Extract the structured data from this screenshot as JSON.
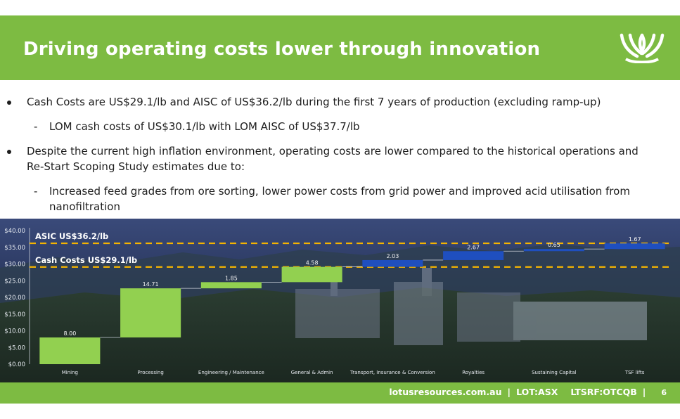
{
  "title": "Driving operating costs lower through innovation",
  "logo_icon": "lotus-logo-icon",
  "bullets": {
    "b1": "Cash Costs are US$29.1/lb and AISC of US$36.2/lb during the first 7 years of production (excluding ramp-up)",
    "b1_sub": "LOM cash costs of US$30.1/lb with LOM AISC of US$37.7/lb",
    "b2_line1": "Despite the current high inflation environment, operating costs are lower compared to the historical operations and",
    "b2_line2": "Re-Start Scoping Study estimates due to:",
    "b2_sub_line1": "Increased feed grades from ore sorting, lower power costs from grid power and improved acid utilisation from",
    "b2_sub_line2": "nanofiltration",
    "dash": "-"
  },
  "chart_data": {
    "type": "bar",
    "subtype": "waterfall",
    "categories": [
      "Mining",
      "Processing",
      "Engineering / Maintenance",
      "General & Admin",
      "Transport, Insurance & Conversion",
      "Royalties",
      "Sustaining Capital",
      "TSF lifts"
    ],
    "values": [
      8.0,
      14.71,
      1.85,
      4.58,
      2.03,
      2.67,
      0.65,
      1.67
    ],
    "value_labels": [
      "8.00",
      "14.71",
      "1.85",
      "4.58",
      "2.03",
      "2.67",
      "0.65",
      "1.67"
    ],
    "series_colors": [
      "#92d050",
      "#92d050",
      "#92d050",
      "#92d050",
      "#1f4fbf",
      "#1f4fbf",
      "#1f4fbf",
      "#1f4fbf"
    ],
    "y_ticks": [
      "$0.00",
      "$5.00",
      "$10.00",
      "$15.00",
      "$20.00",
      "$25.00",
      "$30.00",
      "$35.00",
      "$40.00"
    ],
    "ylim": [
      0,
      40
    ],
    "reference_lines": [
      {
        "label": "ASIC US$36.2/lb",
        "value": 36.2,
        "color": "#f5b400"
      },
      {
        "label": "Cash Costs US$29.1/lb",
        "value": 29.1,
        "color": "#f5b400"
      }
    ],
    "grid": false,
    "legend": "none"
  },
  "footer": {
    "website": "lotusresources.com.au",
    "sep": "|",
    "ticker1": "LOT:ASX",
    "ticker2": "LTSRF:OTCQB",
    "page": "6"
  }
}
